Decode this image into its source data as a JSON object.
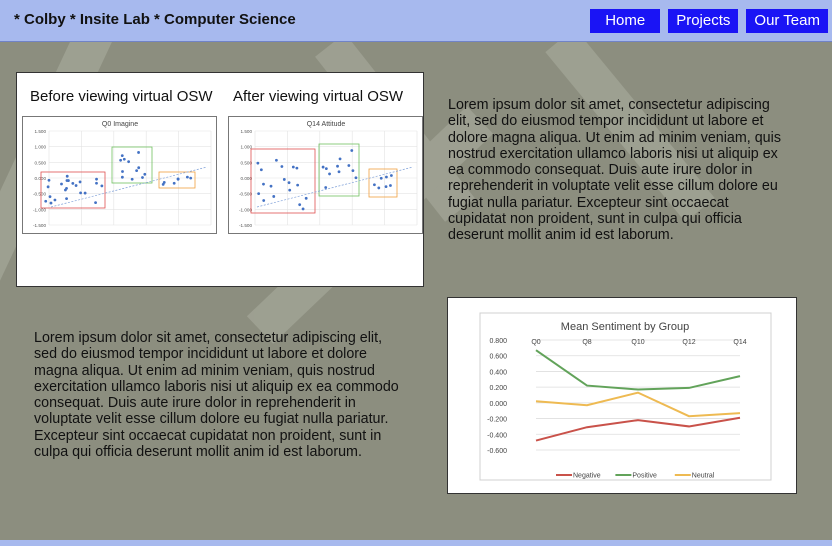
{
  "site": {
    "title": "* Colby * Insite Lab * Computer Science"
  },
  "nav": {
    "home": "Home",
    "projects": "Projects",
    "team": "Our Team"
  },
  "panels": {
    "before_title": "Before viewing virtual OSW",
    "after_title": "After viewing virtual OSW",
    "mini1_title": "Q0 Imagine",
    "mini2_title": "Q14 Attitude",
    "mini_yticks": [
      "1.500",
      "1.000",
      "0.500",
      "0.000",
      "-0.500",
      "-1.000",
      "-1.500"
    ]
  },
  "text": {
    "para1": "Lorem ipsum dolor sit amet, consectetur adipiscing elit, sed do eiusmod tempor incididunt ut labore et dolore magna aliqua. Ut enim ad minim veniam, quis nostrud exercitation ullamco laboris nisi ut aliquip ex ea commodo consequat. Duis aute irure dolor in reprehenderit in voluptate velit esse cillum dolore eu fugiat nulla pariatur. Excepteur sint occaecat cupidatat non proident, sunt in culpa qui officia deserunt mollit anim id est laborum.",
    "para2": "Lorem ipsum dolor sit amet, consectetur adipiscing elit, sed do eiusmod tempor incididunt ut labore et dolore magna aliqua. Ut enim ad minim veniam, quis nostrud exercitation ullamco laboris nisi ut aliquip ex ea commodo consequat. Duis aute irure dolor in reprehenderit in voluptate velit esse cillum dolore eu fugiat nulla pariatur. Excepteur sint occaecat cupidatat non proident, sunt in culpa qui officia deserunt mollit anim id est laborum."
  },
  "colors": {
    "nav_bg": "#1a14f5",
    "topbar": "#a7b9ee",
    "negative": "#c9524a",
    "positive": "#62a35a",
    "neutral": "#eeba52"
  },
  "chart_data": {
    "type": "line",
    "title": "Mean Sentiment by Group",
    "categories": [
      "Q0",
      "Q8",
      "Q10",
      "Q12",
      "Q14"
    ],
    "ylim": [
      -0.6,
      0.8
    ],
    "yticks": [
      "0.800",
      "0.600",
      "0.400",
      "0.200",
      "0.000",
      "-0.200",
      "-0.400",
      "-0.600"
    ],
    "grid": true,
    "legend_position": "bottom",
    "series": [
      {
        "name": "Negative",
        "color": "#c9524a",
        "values": [
          -0.48,
          -0.31,
          -0.22,
          -0.3,
          -0.19
        ]
      },
      {
        "name": "Positive",
        "color": "#62a35a",
        "values": [
          0.67,
          0.22,
          0.17,
          0.19,
          0.34
        ]
      },
      {
        "name": "Neutral",
        "color": "#eeba52",
        "values": [
          0.02,
          -0.03,
          0.13,
          -0.17,
          -0.13
        ]
      }
    ]
  }
}
